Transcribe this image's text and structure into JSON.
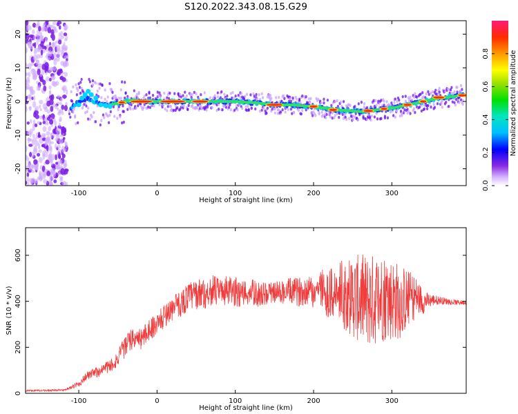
{
  "title": "S120.2022.343.08.15.G29",
  "chart_data": [
    {
      "type": "heatmap",
      "xlabel": "Height of straight line (km)",
      "ylabel": "Frequency (Hz)",
      "xlim": [
        -168,
        395
      ],
      "ylim": [
        -25,
        24
      ],
      "xticks": [
        -100,
        0,
        100,
        200,
        300
      ],
      "yticks": [
        -20,
        -10,
        0,
        10,
        20
      ],
      "ridge": {
        "x": [
          -110,
          -100,
          -90,
          -80,
          -70,
          -60,
          -50,
          -40,
          -30,
          -20,
          0,
          50,
          70,
          100,
          130,
          150,
          170,
          200,
          230,
          260,
          280,
          300,
          320,
          340,
          360,
          380,
          392
        ],
        "y": [
          -2,
          0,
          1,
          0,
          -1,
          -1,
          -0.5,
          0,
          0.5,
          0,
          0,
          0,
          0,
          0,
          -0.5,
          -1,
          -1,
          -1.5,
          -2.5,
          -3,
          -2.5,
          -2,
          -1,
          0,
          1,
          1.5,
          2
        ]
      },
      "colorbar": {
        "label": "Normalized spectral amplitude",
        "range": [
          0,
          1
        ],
        "ticks": [
          "0.0",
          "0.2",
          "0.4",
          "0.6",
          "0.8"
        ]
      }
    },
    {
      "type": "line",
      "xlabel": "Height of straight line (km)",
      "ylabel": "SNR (10 * v/v)",
      "xlim": [
        -168,
        395
      ],
      "ylim": [
        0,
        720
      ],
      "xticks": [
        -100,
        0,
        100,
        200,
        300
      ],
      "yticks": [
        0,
        200,
        400,
        600
      ],
      "color": "#f03c3c",
      "series": [
        {
          "x": [
            -168,
            -140,
            -120,
            -110,
            -100,
            -90,
            -80,
            -70,
            -60,
            -50,
            -40,
            -30,
            -20,
            -10,
            0,
            10,
            20,
            30,
            40,
            50,
            60,
            70,
            80,
            90,
            100,
            110,
            120,
            130,
            140,
            150,
            160,
            170,
            180,
            190,
            200,
            210,
            220,
            230,
            240,
            250,
            260,
            270,
            280,
            290,
            300,
            310,
            320,
            330,
            340,
            350,
            360,
            370,
            380,
            395
          ],
          "y": [
            12,
            12,
            14,
            25,
            40,
            75,
            85,
            105,
            120,
            150,
            210,
            240,
            235,
            280,
            300,
            340,
            370,
            390,
            420,
            430,
            430,
            450,
            440,
            445,
            440,
            435,
            440,
            430,
            430,
            440,
            440,
            445,
            440,
            450,
            440,
            460,
            430,
            430,
            430,
            420,
            410,
            400,
            410,
            420,
            410,
            400,
            410,
            420,
            400,
            405,
            405,
            400,
            395,
            395
          ]
        }
      ],
      "amplitude": {
        "x": [
          -168,
          -120,
          -110,
          -100,
          -80,
          -60,
          -40,
          0,
          50,
          100,
          150,
          200,
          230,
          250,
          265,
          275,
          290,
          310,
          330,
          345,
          360,
          380,
          395
        ],
        "a": [
          6,
          6,
          10,
          25,
          40,
          50,
          80,
          80,
          110,
          110,
          80,
          120,
          220,
          300,
          340,
          340,
          330,
          280,
          160,
          60,
          30,
          20,
          15
        ]
      }
    }
  ]
}
